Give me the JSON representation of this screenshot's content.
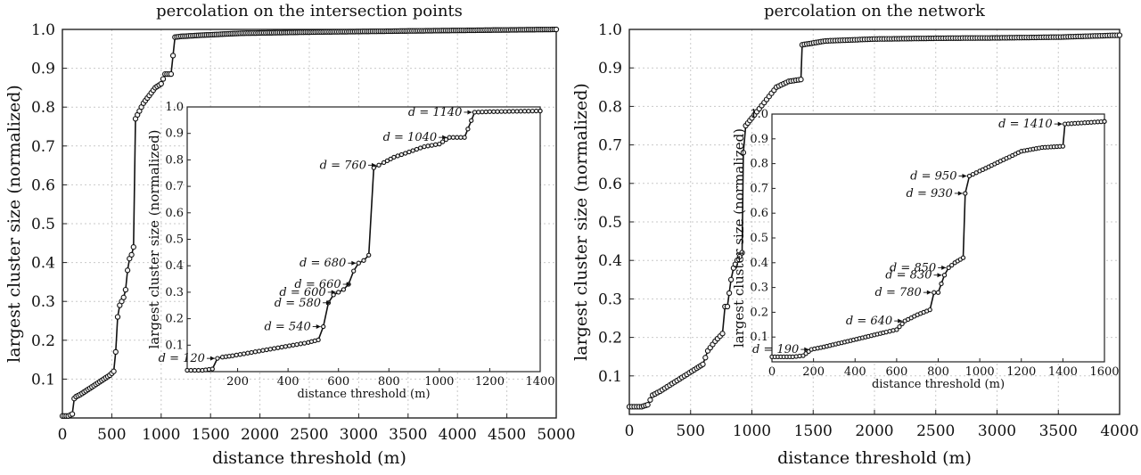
{
  "chart_data": [
    {
      "type": "line",
      "title": "percolation on the intersection points",
      "xlabel": "distance threshold (m)",
      "ylabel": "largest cluster size (normalized)",
      "xlim": [
        0,
        5000
      ],
      "ylim": [
        0,
        1.0
      ],
      "xticks": [
        "0",
        "500",
        "1000",
        "1500",
        "2000",
        "2500",
        "3000",
        "3500",
        "4000",
        "4500",
        "5000"
      ],
      "yticks": [
        "0.1",
        "0.2",
        "0.3",
        "0.4",
        "0.5",
        "0.6",
        "0.7",
        "0.8",
        "0.9",
        "1.0"
      ],
      "grid": true,
      "series": [
        {
          "x": [
            0,
            60,
            100,
            120,
            140,
            180,
            240,
            300,
            360,
            420,
            480,
            520,
            540,
            560,
            580,
            600,
            620,
            640,
            660,
            680,
            700,
            720,
            740,
            760,
            780,
            820,
            880,
            940,
            1000,
            1040,
            1100,
            1140,
            1200,
            1400,
            1800,
            2500,
            3500,
            5000
          ],
          "y": [
            0.005,
            0.005,
            0.01,
            0.05,
            0.055,
            0.06,
            0.07,
            0.08,
            0.09,
            0.1,
            0.11,
            0.12,
            0.17,
            0.26,
            0.29,
            0.3,
            0.31,
            0.33,
            0.38,
            0.41,
            0.42,
            0.44,
            0.77,
            0.78,
            0.79,
            0.81,
            0.83,
            0.85,
            0.86,
            0.885,
            0.885,
            0.98,
            0.982,
            0.985,
            0.99,
            0.993,
            0.996,
            1.0
          ]
        }
      ],
      "inset": {
        "xlabel": "distance threshold (m)",
        "ylabel": "largest cluster size (normalized)",
        "xlim": [
          0,
          1400
        ],
        "ylim": [
          0,
          1.0
        ],
        "xticks": [
          "200",
          "400",
          "600",
          "800",
          "1000",
          "1200",
          "1400"
        ],
        "yticks": [
          "0.1",
          "0.2",
          "0.3",
          "0.4",
          "0.5",
          "0.6",
          "0.7",
          "0.8",
          "0.9",
          "1.0"
        ],
        "annotations": [
          {
            "label": "d = 120",
            "x": 120,
            "y": 0.05
          },
          {
            "label": "d = 540",
            "x": 540,
            "y": 0.17
          },
          {
            "label": "d = 580",
            "x": 580,
            "y": 0.26
          },
          {
            "label": "d = 600",
            "x": 600,
            "y": 0.3
          },
          {
            "label": "d = 660",
            "x": 660,
            "y": 0.33
          },
          {
            "label": "d = 680",
            "x": 680,
            "y": 0.41
          },
          {
            "label": "d = 760",
            "x": 760,
            "y": 0.78
          },
          {
            "label": "d = 1040",
            "x": 1040,
            "y": 0.885
          },
          {
            "label": "d = 1140",
            "x": 1140,
            "y": 0.98
          }
        ]
      }
    },
    {
      "type": "line",
      "title": "percolation on the network",
      "xlabel": "distance threshold (m)",
      "ylabel": "largest cluster size (normalized)",
      "xlim": [
        0,
        4000
      ],
      "ylim": [
        0,
        1.0
      ],
      "xticks": [
        "0",
        "500",
        "1000",
        "1500",
        "2000",
        "2500",
        "3000",
        "3500",
        "4000"
      ],
      "yticks": [
        "0.1",
        "0.2",
        "0.3",
        "0.4",
        "0.5",
        "0.6",
        "0.7",
        "0.8",
        "0.9",
        "1.0"
      ],
      "grid": true,
      "series": [
        {
          "x": [
            0,
            100,
            150,
            190,
            250,
            350,
            450,
            550,
            600,
            640,
            700,
            760,
            780,
            800,
            830,
            850,
            880,
            920,
            930,
            950,
            1000,
            1100,
            1200,
            1300,
            1400,
            1410,
            1600,
            2000,
            2500,
            3000,
            3500,
            4000
          ],
          "y": [
            0.02,
            0.02,
            0.025,
            0.05,
            0.06,
            0.08,
            0.1,
            0.12,
            0.13,
            0.165,
            0.19,
            0.21,
            0.28,
            0.28,
            0.35,
            0.38,
            0.4,
            0.42,
            0.68,
            0.75,
            0.77,
            0.81,
            0.85,
            0.865,
            0.87,
            0.96,
            0.97,
            0.975,
            0.977,
            0.978,
            0.98,
            0.985
          ]
        }
      ],
      "inset": {
        "xlabel": "distance threshold (m)",
        "ylabel": "largest cluster size (normalized)",
        "xlim": [
          0,
          1600
        ],
        "ylim": [
          0,
          1.0
        ],
        "xticks": [
          "0",
          "200",
          "400",
          "600",
          "800",
          "1000",
          "1200",
          "1400",
          "1600"
        ],
        "yticks": [
          "0.1",
          "0.2",
          "0.3",
          "0.4",
          "0.5",
          "0.6",
          "0.7",
          "0.8",
          "0.9",
          "1.0"
        ],
        "annotations": [
          {
            "label": "d = 190",
            "x": 190,
            "y": 0.05
          },
          {
            "label": "d = 640",
            "x": 640,
            "y": 0.165
          },
          {
            "label": "d = 780",
            "x": 780,
            "y": 0.28
          },
          {
            "label": "d = 830",
            "x": 830,
            "y": 0.35
          },
          {
            "label": "d = 850",
            "x": 850,
            "y": 0.38
          },
          {
            "label": "d = 930",
            "x": 930,
            "y": 0.68
          },
          {
            "label": "d = 950",
            "x": 950,
            "y": 0.75
          },
          {
            "label": "d = 1410",
            "x": 1410,
            "y": 0.96
          }
        ]
      }
    }
  ]
}
